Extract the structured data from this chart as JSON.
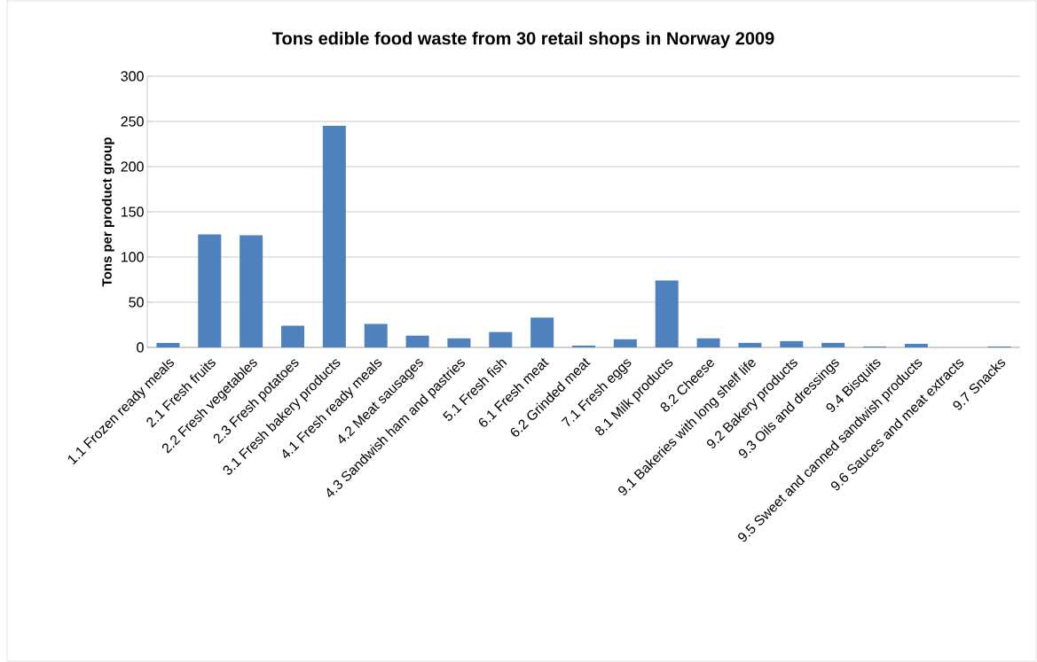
{
  "chart_data": {
    "type": "bar",
    "title": "Tons edible food waste from 30 retail shops in Norway 2009",
    "ylabel": "Tons per product group",
    "categories": [
      "1.1 Frozen ready meals",
      "2.1 Fresh fruits",
      "2.2 Fresh vegetables",
      "2.3 Fresh potatoes",
      "3.1 Fresh bakery products",
      "4.1 Fresh ready meals",
      "4.2 Meat sausages",
      "4.3 Sandwish ham and pastries",
      "5.1 Fresh fish",
      "6.1 Fresh meat",
      "6.2 Grinded meat",
      "7.1 Fresh eggs",
      "8.1 Milk products",
      "8.2 Cheese",
      "9.1 Bakeries with long shelf life",
      "9.2 Bakery products",
      "9.3 Oils and dressings",
      "9.4 Bisquits",
      "9.5 Sweet and canned sandwish products",
      "9.6 Sauces and meat extracts",
      "9.7 Snacks"
    ],
    "values": [
      5,
      125,
      124,
      24,
      245,
      26,
      13,
      10,
      17,
      33,
      2,
      9,
      74,
      10,
      5,
      7,
      5,
      1,
      4,
      0,
      1
    ],
    "color": "#4f81bd",
    "ylim": [
      0,
      300
    ],
    "yticks": [
      0,
      50,
      100,
      150,
      200,
      250,
      300
    ],
    "grid": "y"
  }
}
